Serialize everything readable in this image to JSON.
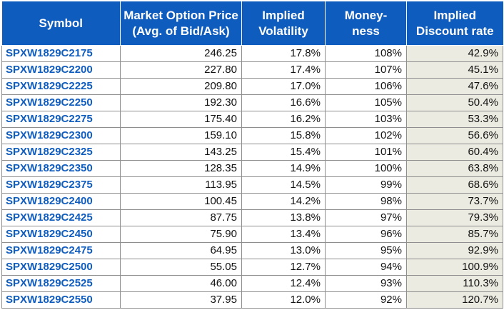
{
  "table": {
    "headers": {
      "symbol": "Symbol",
      "price_line1": "Market Option Price",
      "price_line2": "(Avg. of Bid/Ask)",
      "iv_line1": "Implied",
      "iv_line2": "Volatility",
      "money_line1": "Money-",
      "money_line2": "ness",
      "rate_line1": "Implied",
      "rate_line2": "Discount rate"
    },
    "rows": [
      [
        "SPXW1829C2175",
        "246.25",
        "17.8%",
        "108%",
        "42.9%"
      ],
      [
        "SPXW1829C2200",
        "227.80",
        "17.4%",
        "107%",
        "45.1%"
      ],
      [
        "SPXW1829C2225",
        "209.80",
        "17.0%",
        "106%",
        "47.6%"
      ],
      [
        "SPXW1829C2250",
        "192.30",
        "16.6%",
        "105%",
        "50.4%"
      ],
      [
        "SPXW1829C2275",
        "175.40",
        "16.2%",
        "103%",
        "53.3%"
      ],
      [
        "SPXW1829C2300",
        "159.10",
        "15.8%",
        "102%",
        "56.6%"
      ],
      [
        "SPXW1829C2325",
        "143.25",
        "15.4%",
        "101%",
        "60.4%"
      ],
      [
        "SPXW1829C2350",
        "128.35",
        "14.9%",
        "100%",
        "63.8%"
      ],
      [
        "SPXW1829C2375",
        "113.95",
        "14.5%",
        "99%",
        "68.6%"
      ],
      [
        "SPXW1829C2400",
        "100.45",
        "14.2%",
        "98%",
        "73.7%"
      ],
      [
        "SPXW1829C2425",
        "87.75",
        "13.8%",
        "97%",
        "79.3%"
      ],
      [
        "SPXW1829C2450",
        "75.90",
        "13.4%",
        "96%",
        "85.7%"
      ],
      [
        "SPXW1829C2475",
        "64.95",
        "13.0%",
        "95%",
        "92.9%"
      ],
      [
        "SPXW1829C2500",
        "55.05",
        "12.7%",
        "94%",
        "100.9%"
      ],
      [
        "SPXW1829C2525",
        "46.00",
        "12.4%",
        "93%",
        "110.3%"
      ],
      [
        "SPXW1829C2550",
        "37.95",
        "12.0%",
        "92%",
        "120.7%"
      ]
    ],
    "colors": {
      "header_bg": "#0f5cbf",
      "symbol_text": "#0f5cbf",
      "rate_column_bg": "#ecebe1"
    }
  }
}
